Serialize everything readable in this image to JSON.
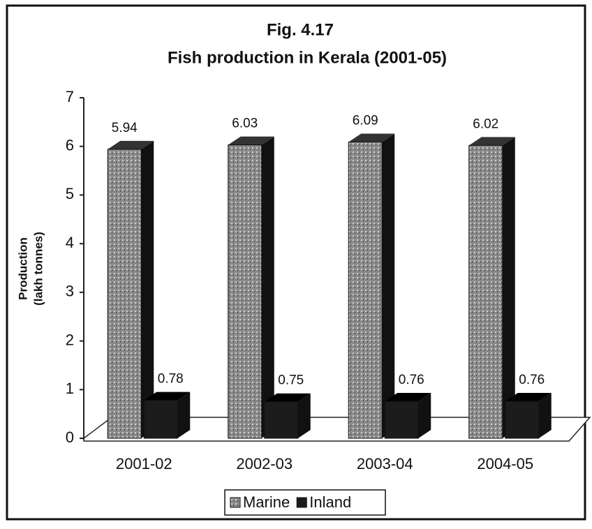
{
  "chart_data": {
    "type": "bar3d",
    "title": "Fig. 4.17",
    "subtitle": "Fish production in Kerala (2001-05)",
    "y_label": [
      "Production",
      "(lakh tonnes)"
    ],
    "categories": [
      "2001-02",
      "2002-03",
      "2003-04",
      "2004-05"
    ],
    "series": [
      {
        "name": "Marine",
        "color": "#9c9c9c",
        "values": [
          5.94,
          6.03,
          6.09,
          6.02
        ]
      },
      {
        "name": "Inland",
        "color": "#1c1c1c",
        "values": [
          0.78,
          0.75,
          0.76,
          0.76
        ]
      }
    ],
    "ylim": [
      0,
      7
    ],
    "yticks": [
      0,
      1,
      2,
      3,
      4,
      5,
      6,
      7
    ],
    "legend": "bottom"
  }
}
